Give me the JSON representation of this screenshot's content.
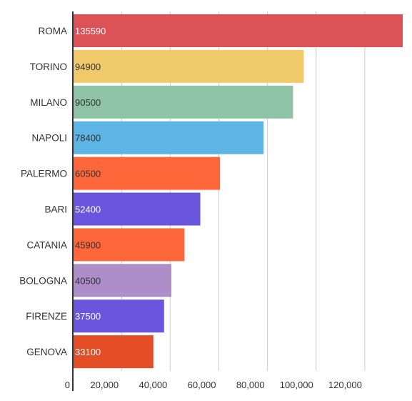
{
  "chart_data": {
    "type": "bar",
    "orientation": "horizontal",
    "title": "",
    "xlabel": "",
    "ylabel": "",
    "categories": [
      "ROMA",
      "TORINO",
      "MILANO",
      "NAPOLI",
      "PALERMO",
      "BARI",
      "CATANIA",
      "BOLOGNA",
      "FIRENZE",
      "GENOVA"
    ],
    "values": [
      135590,
      94900,
      90500,
      78400,
      60500,
      52400,
      45900,
      40500,
      37500,
      33100
    ],
    "value_labels": [
      "135590",
      "94900",
      "90500",
      "78400",
      "60500",
      "52400",
      "45900",
      "40500",
      "37500",
      "33100"
    ],
    "bar_colors": [
      "#dd5257",
      "#f0c96b",
      "#8fc3a6",
      "#5db5e5",
      "#fe6739",
      "#6b55df",
      "#fe6739",
      "#ad8ec8",
      "#6b55df",
      "#e34e27"
    ],
    "value_label_colors": [
      "#ffffff",
      "#333333",
      "#333333",
      "#333333",
      "#333333",
      "#ffffff",
      "#333333",
      "#333333",
      "#ffffff",
      "#ffffff"
    ],
    "xlim": [
      0,
      135590
    ],
    "xticks": [
      0,
      20000,
      40000,
      60000,
      80000,
      100000,
      120000
    ],
    "xtick_labels": [
      "0",
      "20,000",
      "40,000",
      "60,000",
      "80,000",
      "100,000",
      "120,000"
    ],
    "grid": "vertical",
    "legend": "none"
  }
}
